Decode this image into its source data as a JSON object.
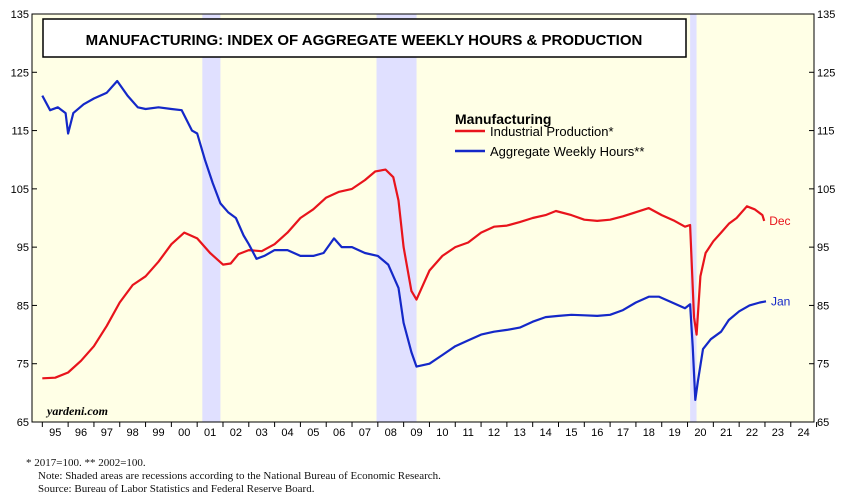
{
  "chart_data": {
    "type": "line",
    "title": "MANUFACTURING: INDEX OF AGGREGATE WEEKLY HOURS & PRODUCTION",
    "legend_title": "Manufacturing",
    "legend_position": "top-center",
    "watermark": "yardeni.com",
    "ylim": [
      65,
      135
    ],
    "y_ticks": [
      65,
      75,
      85,
      95,
      105,
      115,
      125,
      135
    ],
    "xlim": [
      1994.6,
      2024.9
    ],
    "x_tick_labels": [
      "95",
      "96",
      "97",
      "98",
      "99",
      "00",
      "01",
      "02",
      "03",
      "04",
      "05",
      "06",
      "07",
      "08",
      "09",
      "10",
      "11",
      "12",
      "13",
      "14",
      "15",
      "16",
      "17",
      "18",
      "19",
      "20",
      "21",
      "22",
      "23",
      "24"
    ],
    "grid": false,
    "plot_background": "#ffffe6",
    "recession_color": "#e0e0ff",
    "recessions": [
      [
        2001.2,
        2001.9
      ],
      [
        2007.95,
        2009.5
      ],
      [
        2020.1,
        2020.35
      ]
    ],
    "series": [
      {
        "name": "Industrial Production*",
        "end_label": "Dec",
        "color": "#e8141c",
        "points": [
          [
            1995.0,
            72.5
          ],
          [
            1995.5,
            72.6
          ],
          [
            1996.0,
            73.5
          ],
          [
            1996.5,
            75.5
          ],
          [
            1997.0,
            78
          ],
          [
            1997.5,
            81.5
          ],
          [
            1998.0,
            85.5
          ],
          [
            1998.5,
            88.5
          ],
          [
            1999.0,
            90
          ],
          [
            1999.5,
            92.5
          ],
          [
            2000.0,
            95.5
          ],
          [
            2000.5,
            97.5
          ],
          [
            2001.0,
            96.5
          ],
          [
            2001.5,
            94
          ],
          [
            2002.0,
            92
          ],
          [
            2002.3,
            92.2
          ],
          [
            2002.6,
            93.8
          ],
          [
            2003.0,
            94.5
          ],
          [
            2003.5,
            94.3
          ],
          [
            2004.0,
            95.5
          ],
          [
            2004.5,
            97.5
          ],
          [
            2005.0,
            100
          ],
          [
            2005.5,
            101.5
          ],
          [
            2006.0,
            103.5
          ],
          [
            2006.5,
            104.5
          ],
          [
            2007.0,
            105
          ],
          [
            2007.5,
            106.5
          ],
          [
            2007.9,
            108
          ],
          [
            2008.3,
            108.3
          ],
          [
            2008.6,
            107
          ],
          [
            2008.8,
            103
          ],
          [
            2009.0,
            95
          ],
          [
            2009.3,
            87.5
          ],
          [
            2009.5,
            86
          ],
          [
            2009.8,
            89
          ],
          [
            2010.0,
            91
          ],
          [
            2010.5,
            93.5
          ],
          [
            2011.0,
            95
          ],
          [
            2011.5,
            95.8
          ],
          [
            2012.0,
            97.5
          ],
          [
            2012.5,
            98.5
          ],
          [
            2013.0,
            98.7
          ],
          [
            2013.5,
            99.3
          ],
          [
            2014.0,
            100
          ],
          [
            2014.5,
            100.5
          ],
          [
            2014.9,
            101.2
          ],
          [
            2015.5,
            100.5
          ],
          [
            2016.0,
            99.7
          ],
          [
            2016.5,
            99.5
          ],
          [
            2017.0,
            99.7
          ],
          [
            2017.5,
            100.3
          ],
          [
            2018.0,
            101
          ],
          [
            2018.5,
            101.7
          ],
          [
            2019.0,
            100.5
          ],
          [
            2019.5,
            99.5
          ],
          [
            2019.9,
            98.5
          ],
          [
            2020.1,
            98.8
          ],
          [
            2020.25,
            83
          ],
          [
            2020.35,
            80
          ],
          [
            2020.5,
            90
          ],
          [
            2020.7,
            94
          ],
          [
            2021.0,
            96
          ],
          [
            2021.3,
            97.5
          ],
          [
            2021.6,
            99
          ],
          [
            2021.9,
            100
          ],
          [
            2022.3,
            102
          ],
          [
            2022.6,
            101.5
          ],
          [
            2022.9,
            100.5
          ],
          [
            2022.97,
            99.5
          ]
        ]
      },
      {
        "name": "Aggregate Weekly Hours**",
        "end_label": "Jan",
        "color": "#1428c8",
        "points": [
          [
            1995.0,
            121
          ],
          [
            1995.3,
            118.5
          ],
          [
            1995.6,
            119
          ],
          [
            1995.9,
            118
          ],
          [
            1996.0,
            114.5
          ],
          [
            1996.2,
            118
          ],
          [
            1996.6,
            119.5
          ],
          [
            1997.0,
            120.5
          ],
          [
            1997.5,
            121.5
          ],
          [
            1997.9,
            123.5
          ],
          [
            1998.3,
            121
          ],
          [
            1998.7,
            119
          ],
          [
            1999.0,
            118.7
          ],
          [
            1999.5,
            119
          ],
          [
            2000.0,
            118.7
          ],
          [
            2000.4,
            118.5
          ],
          [
            2000.8,
            115
          ],
          [
            2001.0,
            114.5
          ],
          [
            2001.3,
            110
          ],
          [
            2001.6,
            106
          ],
          [
            2001.9,
            102.5
          ],
          [
            2002.2,
            101
          ],
          [
            2002.5,
            100
          ],
          [
            2002.8,
            97
          ],
          [
            2003.0,
            95.5
          ],
          [
            2003.3,
            93
          ],
          [
            2003.6,
            93.5
          ],
          [
            2004.0,
            94.5
          ],
          [
            2004.5,
            94.5
          ],
          [
            2005.0,
            93.5
          ],
          [
            2005.5,
            93.5
          ],
          [
            2005.9,
            94
          ],
          [
            2006.3,
            96.5
          ],
          [
            2006.6,
            95
          ],
          [
            2007.0,
            95
          ],
          [
            2007.5,
            94
          ],
          [
            2008.0,
            93.5
          ],
          [
            2008.4,
            92
          ],
          [
            2008.8,
            88
          ],
          [
            2009.0,
            82
          ],
          [
            2009.3,
            77
          ],
          [
            2009.5,
            74.5
          ],
          [
            2010.0,
            75
          ],
          [
            2010.5,
            76.5
          ],
          [
            2011.0,
            78
          ],
          [
            2011.5,
            79
          ],
          [
            2012.0,
            80
          ],
          [
            2012.5,
            80.5
          ],
          [
            2013.0,
            80.8
          ],
          [
            2013.5,
            81.2
          ],
          [
            2014.0,
            82.2
          ],
          [
            2014.5,
            83
          ],
          [
            2015.0,
            83.2
          ],
          [
            2015.5,
            83.4
          ],
          [
            2016.0,
            83.3
          ],
          [
            2016.5,
            83.2
          ],
          [
            2017.0,
            83.4
          ],
          [
            2017.5,
            84.2
          ],
          [
            2018.0,
            85.5
          ],
          [
            2018.5,
            86.5
          ],
          [
            2018.9,
            86.5
          ],
          [
            2019.4,
            85.5
          ],
          [
            2019.9,
            84.5
          ],
          [
            2020.1,
            85.2
          ],
          [
            2020.2,
            78
          ],
          [
            2020.3,
            68.8
          ],
          [
            2020.4,
            72
          ],
          [
            2020.6,
            77.5
          ],
          [
            2020.9,
            79.2
          ],
          [
            2021.3,
            80.5
          ],
          [
            2021.6,
            82.5
          ],
          [
            2022.0,
            84
          ],
          [
            2022.4,
            85
          ],
          [
            2022.8,
            85.5
          ],
          [
            2023.04,
            85.7
          ]
        ]
      }
    ]
  },
  "footnotes": {
    "line1": "*   2017=100. ** 2002=100.",
    "line2": "Note: Shaded areas are recessions according to the National Bureau of Economic Research.",
    "line3": "Source: Bureau of Labor Statistics and Federal Reserve Board."
  }
}
